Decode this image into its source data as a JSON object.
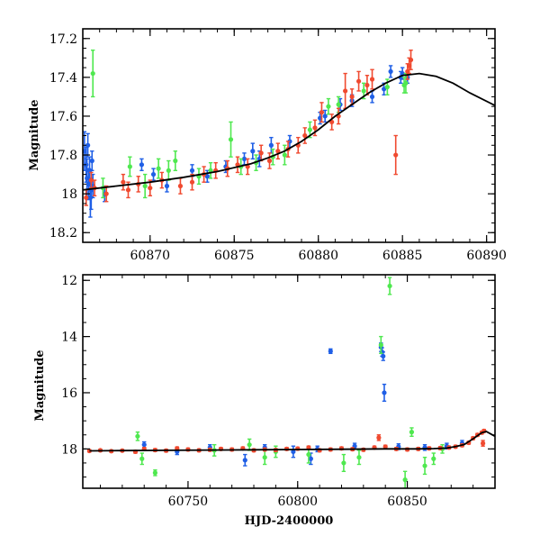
{
  "colors": {
    "blue": "#1f5fe6",
    "green": "#4fe84f",
    "red": "#f04a30",
    "model": "#000000"
  },
  "chart_data": [
    {
      "type": "scatter",
      "title": "",
      "xlabel": "",
      "ylabel": "Magnitude",
      "xlim": [
        60866,
        60890.5
      ],
      "ylim": [
        18.25,
        17.15
      ],
      "y_inverted": true,
      "xticks": [
        60870,
        60875,
        60880,
        60885,
        60890
      ],
      "yticks": [
        17.2,
        17.4,
        17.6,
        17.8,
        18,
        18.2
      ],
      "xtick_labels": [
        "60870",
        "60875",
        "60880",
        "60885",
        "60890"
      ],
      "ytick_labels": [
        "17.2",
        "17.4",
        "17.6",
        "17.8",
        "18",
        "18.2"
      ],
      "model_curve": {
        "x": [
          60866,
          60868,
          60870,
          60872,
          60874,
          60876,
          60877,
          60878,
          60879,
          60880,
          60881,
          60882,
          60883,
          60884,
          60885,
          60886,
          60887,
          60888,
          60889,
          60890.5
        ],
        "y": [
          17.98,
          17.96,
          17.94,
          17.915,
          17.885,
          17.845,
          17.815,
          17.78,
          17.73,
          17.67,
          17.6,
          17.54,
          17.48,
          17.43,
          17.39,
          17.38,
          17.395,
          17.43,
          17.48,
          17.545
        ]
      },
      "series": [
        {
          "color": "blue",
          "points": [
            [
              60866.1,
              17.78,
              0.1
            ],
            [
              60866.2,
              17.85,
              0.09
            ],
            [
              60866.25,
              17.92,
              0.1
            ],
            [
              60866.3,
              17.75,
              0.06
            ],
            [
              60866.35,
              17.95,
              0.08
            ],
            [
              60866.4,
              17.88,
              0.07
            ],
            [
              60866.45,
              18.02,
              0.1
            ],
            [
              60866.5,
              17.98,
              0.1
            ],
            [
              60866.55,
              17.83,
              0.05
            ],
            [
              60866.6,
              17.96,
              0.06
            ],
            [
              60867.3,
              18.0,
              0.04
            ],
            [
              60869.5,
              17.85,
              0.03
            ],
            [
              60870.2,
              17.9,
              0.03
            ],
            [
              60871.0,
              17.96,
              0.03
            ],
            [
              60872.5,
              17.88,
              0.03
            ],
            [
              60873.4,
              17.91,
              0.03
            ],
            [
              60874.5,
              17.86,
              0.03
            ],
            [
              60875.6,
              17.82,
              0.03
            ],
            [
              60876.1,
              17.78,
              0.04
            ],
            [
              60876.5,
              17.82,
              0.04
            ],
            [
              60877.2,
              17.75,
              0.04
            ],
            [
              60878.3,
              17.73,
              0.03
            ],
            [
              60880.1,
              17.61,
              0.03
            ],
            [
              60880.4,
              17.6,
              0.03
            ],
            [
              60881.3,
              17.54,
              0.03
            ],
            [
              60882.0,
              17.52,
              0.03
            ],
            [
              60883.2,
              17.5,
              0.03
            ],
            [
              60883.9,
              17.46,
              0.03
            ],
            [
              60884.3,
              17.37,
              0.03
            ],
            [
              60884.9,
              17.4,
              0.03
            ],
            [
              60885.0,
              17.38,
              0.03
            ],
            [
              60885.3,
              17.4,
              0.03
            ]
          ]
        },
        {
          "color": "green",
          "points": [
            [
              60866.6,
              17.38,
              0.12
            ],
            [
              60867.2,
              17.97,
              0.05
            ],
            [
              60868.8,
              17.86,
              0.05
            ],
            [
              60869.7,
              17.96,
              0.06
            ],
            [
              60870.5,
              17.87,
              0.05
            ],
            [
              60871.1,
              17.88,
              0.05
            ],
            [
              60871.5,
              17.83,
              0.05
            ],
            [
              60872.9,
              17.91,
              0.04
            ],
            [
              60873.6,
              17.88,
              0.04
            ],
            [
              60874.8,
              17.72,
              0.09
            ],
            [
              60875.4,
              17.86,
              0.04
            ],
            [
              60876.3,
              17.84,
              0.04
            ],
            [
              60877.3,
              17.81,
              0.04
            ],
            [
              60878.0,
              17.8,
              0.05
            ],
            [
              60879.5,
              17.67,
              0.04
            ],
            [
              60880.6,
              17.55,
              0.04
            ],
            [
              60881.2,
              17.54,
              0.04
            ],
            [
              60882.7,
              17.47,
              0.04
            ],
            [
              60884.1,
              17.45,
              0.04
            ],
            [
              60885.1,
              17.44,
              0.04
            ],
            [
              60885.2,
              17.43,
              0.05
            ]
          ]
        },
        {
          "color": "red",
          "points": [
            [
              60866.2,
              18.02,
              0.04
            ],
            [
              60866.5,
              17.93,
              0.04
            ],
            [
              60866.7,
              17.97,
              0.04
            ],
            [
              60867.4,
              18.0,
              0.04
            ],
            [
              60868.4,
              17.94,
              0.04
            ],
            [
              60868.7,
              17.98,
              0.04
            ],
            [
              60869.3,
              17.95,
              0.04
            ],
            [
              60870.0,
              17.97,
              0.04
            ],
            [
              60870.7,
              17.93,
              0.04
            ],
            [
              60871.8,
              17.96,
              0.04
            ],
            [
              60872.5,
              17.94,
              0.04
            ],
            [
              60873.2,
              17.9,
              0.04
            ],
            [
              60873.9,
              17.88,
              0.04
            ],
            [
              60874.6,
              17.87,
              0.04
            ],
            [
              60875.2,
              17.85,
              0.04
            ],
            [
              60875.8,
              17.86,
              0.04
            ],
            [
              60876.6,
              17.79,
              0.04
            ],
            [
              60877.1,
              17.83,
              0.04
            ],
            [
              60877.6,
              17.78,
              0.04
            ],
            [
              60878.2,
              17.77,
              0.04
            ],
            [
              60878.8,
              17.75,
              0.04
            ],
            [
              60879.2,
              17.7,
              0.04
            ],
            [
              60879.8,
              17.66,
              0.04
            ],
            [
              60880.2,
              17.58,
              0.05
            ],
            [
              60880.8,
              17.63,
              0.04
            ],
            [
              60881.2,
              17.6,
              0.04
            ],
            [
              60881.6,
              17.47,
              0.09
            ],
            [
              60882.0,
              17.5,
              0.04
            ],
            [
              60882.4,
              17.42,
              0.05
            ],
            [
              60882.9,
              17.44,
              0.05
            ],
            [
              60883.2,
              17.41,
              0.05
            ],
            [
              60884.6,
              17.8,
              0.1
            ],
            [
              60885.3,
              17.37,
              0.04
            ],
            [
              60885.4,
              17.34,
              0.04
            ],
            [
              60885.5,
              17.31,
              0.05
            ]
          ]
        }
      ]
    },
    {
      "type": "scatter",
      "title": "",
      "xlabel": "HJD-2400000",
      "ylabel": "Magnitude",
      "xlim": [
        60702,
        60890
      ],
      "ylim": [
        19.4,
        11.8
      ],
      "y_inverted": true,
      "xticks": [
        60750,
        60800,
        60850
      ],
      "yticks": [
        12,
        14,
        16,
        18
      ],
      "xtick_labels": [
        "60750",
        "60800",
        "60850"
      ],
      "ytick_labels": [
        "12",
        "14",
        "16",
        "18"
      ],
      "model_curve": {
        "x": [
          60705,
          60720,
          60740,
          60760,
          60780,
          60800,
          60820,
          60840,
          60855,
          60862,
          60868,
          60872,
          60876,
          60880,
          60884,
          60886,
          60890
        ],
        "y": [
          18.07,
          18.06,
          18.05,
          18.04,
          18.03,
          18.02,
          18.01,
          18.0,
          18.0,
          17.99,
          17.97,
          17.92,
          17.84,
          17.64,
          17.42,
          17.38,
          17.55
        ]
      },
      "series": [
        {
          "color": "blue",
          "points": [
            [
              60730,
              17.85,
              0.1
            ],
            [
              60745,
              18.1,
              0.1
            ],
            [
              60760,
              17.95,
              0.1
            ],
            [
              60776,
              18.4,
              0.2
            ],
            [
              60785,
              17.95,
              0.1
            ],
            [
              60798,
              18.1,
              0.2
            ],
            [
              60806,
              18.35,
              0.2
            ],
            [
              60809,
              18.0,
              0.1
            ],
            [
              60815,
              14.52,
              0.08
            ],
            [
              60826,
              17.9,
              0.1
            ],
            [
              60838,
              14.38,
              0.15
            ],
            [
              60838.5,
              14.55,
              0.15
            ],
            [
              60839,
              14.7,
              0.15
            ],
            [
              60839.5,
              16.0,
              0.3
            ],
            [
              60846,
              17.92,
              0.1
            ],
            [
              60858,
              17.95,
              0.1
            ],
            [
              60868,
              17.9,
              0.1
            ],
            [
              60875,
              17.8,
              0.1
            ]
          ]
        },
        {
          "color": "green",
          "points": [
            [
              60727,
              17.55,
              0.15
            ],
            [
              60729,
              18.35,
              0.2
            ],
            [
              60735,
              18.85,
              0.1
            ],
            [
              60762,
              18.05,
              0.2
            ],
            [
              60778,
              17.85,
              0.2
            ],
            [
              60785,
              18.3,
              0.25
            ],
            [
              60790,
              18.1,
              0.2
            ],
            [
              60805,
              18.2,
              0.3
            ],
            [
              60821,
              18.5,
              0.3
            ],
            [
              60828,
              18.3,
              0.25
            ],
            [
              60838,
              14.3,
              0.3
            ],
            [
              60842,
              12.2,
              0.3
            ],
            [
              60849,
              19.1,
              0.3
            ],
            [
              60852,
              17.4,
              0.15
            ],
            [
              60858,
              18.6,
              0.3
            ],
            [
              60862,
              18.35,
              0.2
            ],
            [
              60866,
              18.0,
              0.15
            ]
          ]
        },
        {
          "color": "red",
          "points": [
            [
              60705,
              18.07,
              0.04
            ],
            [
              60710,
              18.05,
              0.04
            ],
            [
              60715,
              18.08,
              0.04
            ],
            [
              60720,
              18.06,
              0.04
            ],
            [
              60726,
              18.1,
              0.05
            ],
            [
              60730,
              18.0,
              0.05
            ],
            [
              60735,
              18.04,
              0.05
            ],
            [
              60740,
              18.06,
              0.05
            ],
            [
              60745,
              17.98,
              0.05
            ],
            [
              60750,
              18.02,
              0.05
            ],
            [
              60755,
              18.05,
              0.05
            ],
            [
              60760,
              18.03,
              0.05
            ],
            [
              60765,
              18.0,
              0.05
            ],
            [
              60770,
              18.02,
              0.05
            ],
            [
              60775,
              17.98,
              0.05
            ],
            [
              60780,
              18.05,
              0.05
            ],
            [
              60785,
              18.02,
              0.05
            ],
            [
              60790,
              18.04,
              0.05
            ],
            [
              60795,
              18.0,
              0.05
            ],
            [
              60800,
              17.99,
              0.05
            ],
            [
              60805,
              17.95,
              0.05
            ],
            [
              60810,
              18.05,
              0.05
            ],
            [
              60815,
              18.02,
              0.05
            ],
            [
              60820,
              17.98,
              0.05
            ],
            [
              60825,
              18.01,
              0.05
            ],
            [
              60830,
              18.03,
              0.05
            ],
            [
              60835,
              17.95,
              0.05
            ],
            [
              60837,
              17.6,
              0.1
            ],
            [
              60840,
              17.92,
              0.05
            ],
            [
              60845,
              18.0,
              0.05
            ],
            [
              60850,
              18.02,
              0.05
            ],
            [
              60855,
              18.0,
              0.05
            ],
            [
              60860,
              17.98,
              0.05
            ],
            [
              60865,
              17.97,
              0.05
            ],
            [
              60869,
              17.95,
              0.05
            ],
            [
              60872,
              17.92,
              0.05
            ],
            [
              60875,
              17.87,
              0.05
            ],
            [
              60878,
              17.78,
              0.05
            ],
            [
              60880,
              17.62,
              0.05
            ],
            [
              60882,
              17.5,
              0.05
            ],
            [
              60884,
              17.42,
              0.05
            ],
            [
              60885,
              17.36,
              0.05
            ],
            [
              60884.5,
              17.8,
              0.1
            ]
          ]
        }
      ]
    }
  ]
}
